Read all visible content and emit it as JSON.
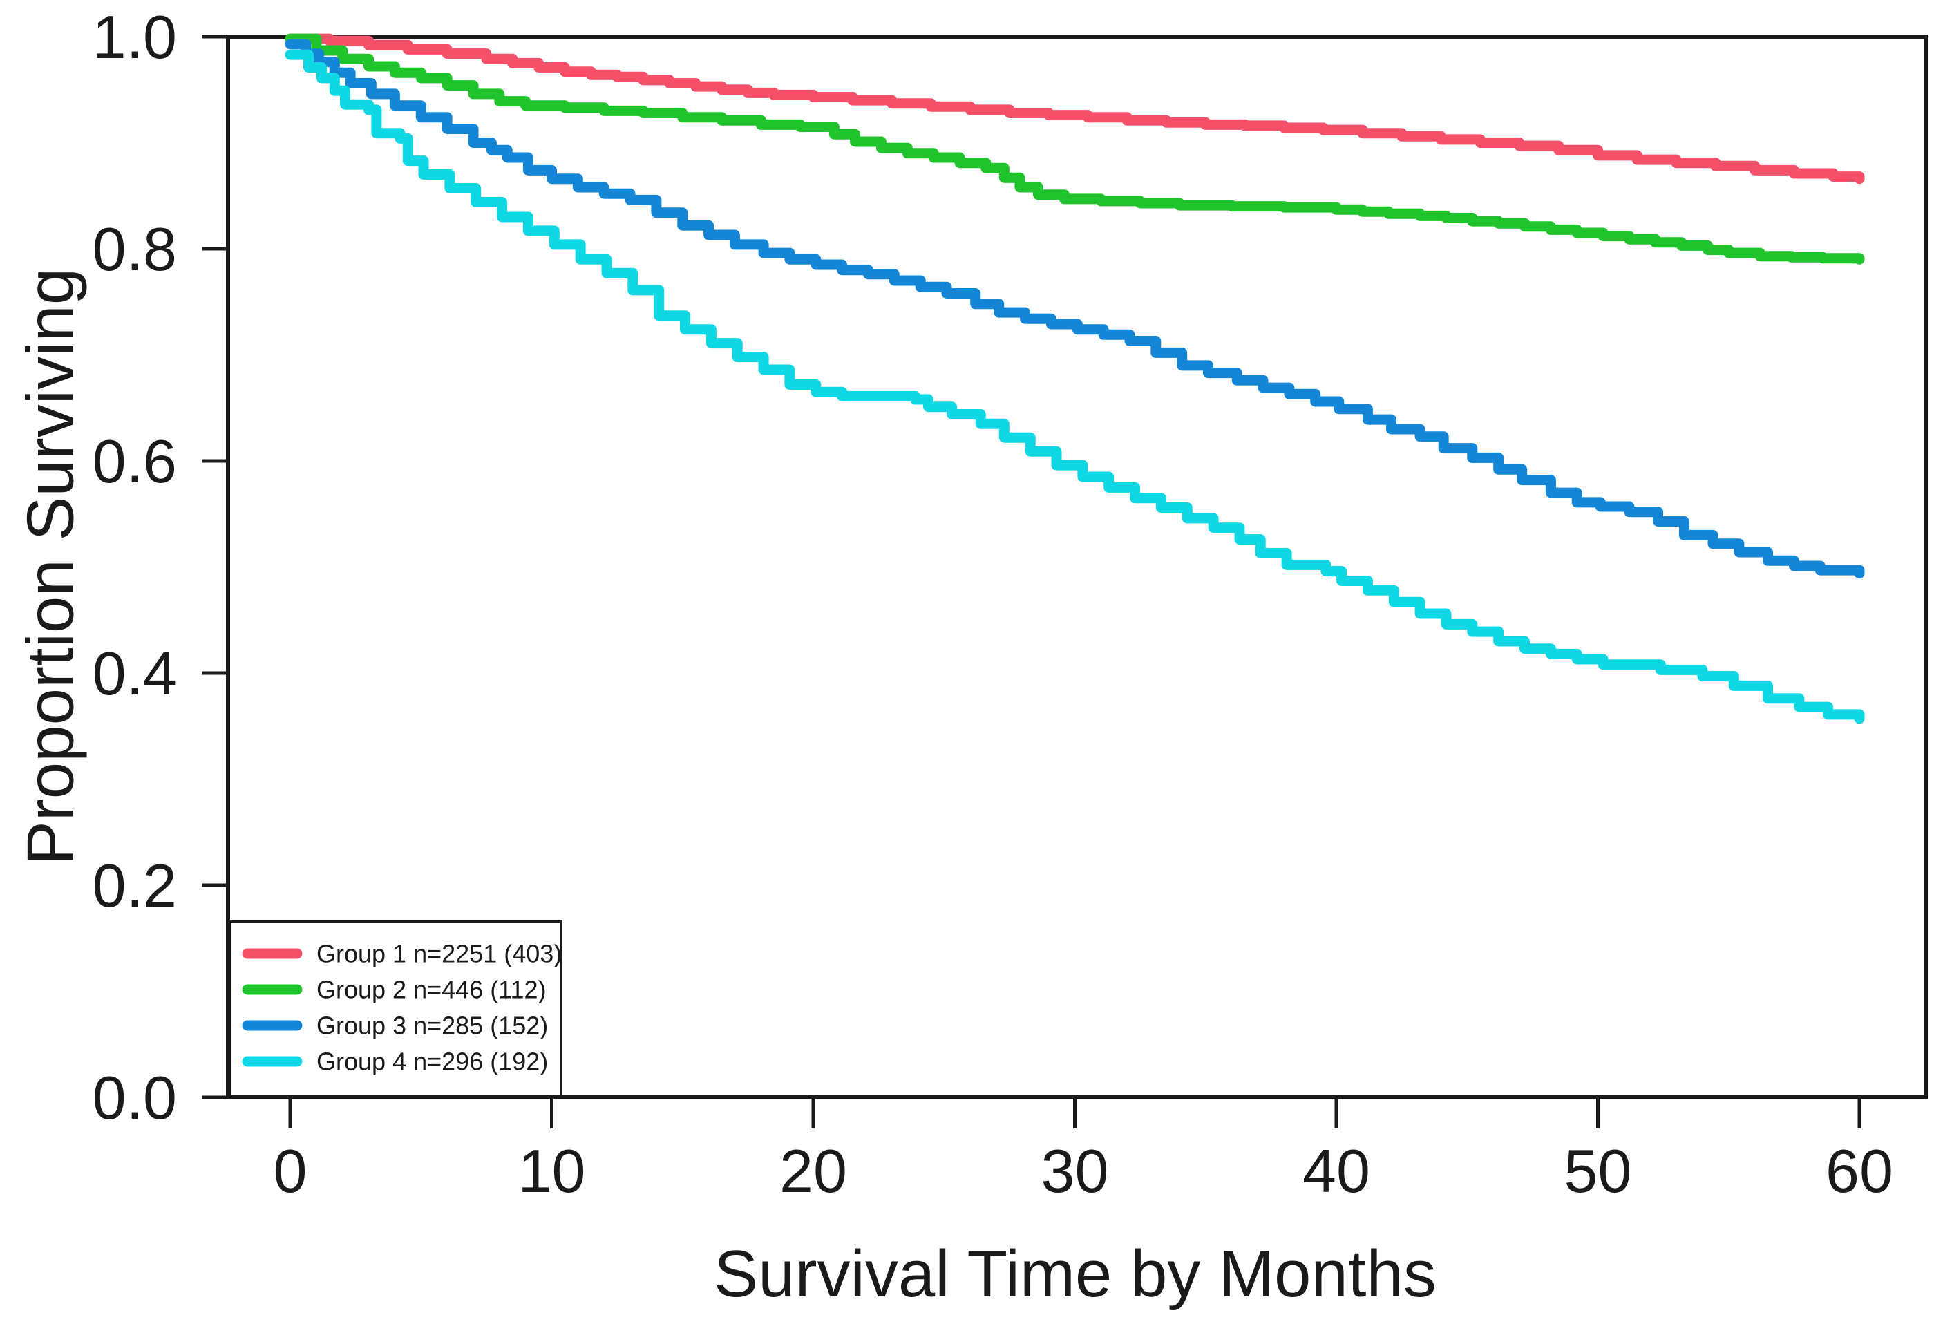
{
  "figure": {
    "background": "#ffffff",
    "axis_color": "#1a1a1a"
  },
  "chart_data": {
    "type": "line",
    "subtype": "kaplan-meier-step",
    "title": "",
    "xlabel": "Survival Time by Months",
    "ylabel": "Proportion Surviving",
    "xlim": [
      0,
      60
    ],
    "ylim": [
      0.0,
      1.0
    ],
    "grid": false,
    "legend_position": "bottom-left",
    "x_ticks": [
      0,
      10,
      20,
      30,
      40,
      50,
      60
    ],
    "x_tick_labels": [
      "0",
      "10",
      "20",
      "30",
      "40",
      "50",
      "60"
    ],
    "y_ticks": [
      0.0,
      0.2,
      0.4,
      0.6,
      0.8,
      1.0
    ],
    "y_tick_labels": [
      "0.0",
      "0.2",
      "0.4",
      "0.6",
      "0.8",
      "1.0"
    ],
    "series": [
      {
        "name": "Group 1 n=2251 (403)",
        "color": "#F4506A",
        "n": 2251,
        "events": 403,
        "points": [
          [
            0,
            0.998
          ],
          [
            1.5,
            0.996
          ],
          [
            3,
            0.992
          ],
          [
            4.5,
            0.988
          ],
          [
            6,
            0.984
          ],
          [
            7.5,
            0.979
          ],
          [
            8.5,
            0.975
          ],
          [
            9.5,
            0.971
          ],
          [
            10.5,
            0.967
          ],
          [
            11.5,
            0.964
          ],
          [
            12.5,
            0.962
          ],
          [
            13.5,
            0.959
          ],
          [
            14.5,
            0.956
          ],
          [
            15.5,
            0.953
          ],
          [
            16.5,
            0.95
          ],
          [
            17.5,
            0.947
          ],
          [
            18.5,
            0.945
          ],
          [
            20,
            0.943
          ],
          [
            21.5,
            0.94
          ],
          [
            23,
            0.937
          ],
          [
            24.5,
            0.934
          ],
          [
            26,
            0.931
          ],
          [
            27.5,
            0.928
          ],
          [
            29,
            0.926
          ],
          [
            30.5,
            0.924
          ],
          [
            32,
            0.921
          ],
          [
            33.5,
            0.919
          ],
          [
            35,
            0.917
          ],
          [
            36.5,
            0.916
          ],
          [
            38,
            0.914
          ],
          [
            39.5,
            0.912
          ],
          [
            41,
            0.909
          ],
          [
            42.5,
            0.906
          ],
          [
            44,
            0.903
          ],
          [
            45.5,
            0.9
          ],
          [
            47,
            0.897
          ],
          [
            48.5,
            0.893
          ],
          [
            50,
            0.888
          ],
          [
            51.5,
            0.884
          ],
          [
            53,
            0.881
          ],
          [
            54.5,
            0.878
          ],
          [
            56,
            0.874
          ],
          [
            57.5,
            0.871
          ],
          [
            59,
            0.868
          ],
          [
            60,
            0.866
          ]
        ]
      },
      {
        "name": "Group 2 n=446 (112)",
        "color": "#1FC42C",
        "n": 446,
        "events": 112,
        "points": [
          [
            0,
            0.998
          ],
          [
            1,
            0.987
          ],
          [
            2,
            0.979
          ],
          [
            3,
            0.972
          ],
          [
            4,
            0.966
          ],
          [
            5,
            0.961
          ],
          [
            6,
            0.954
          ],
          [
            7,
            0.946
          ],
          [
            8,
            0.939
          ],
          [
            9,
            0.935
          ],
          [
            10.5,
            0.933
          ],
          [
            12,
            0.93
          ],
          [
            13.5,
            0.928
          ],
          [
            15,
            0.924
          ],
          [
            16.5,
            0.921
          ],
          [
            18,
            0.917
          ],
          [
            19.5,
            0.915
          ],
          [
            20.8,
            0.908
          ],
          [
            21.6,
            0.901
          ],
          [
            22.6,
            0.895
          ],
          [
            23.6,
            0.89
          ],
          [
            24.6,
            0.886
          ],
          [
            25.6,
            0.881
          ],
          [
            26.6,
            0.876
          ],
          [
            27.3,
            0.867
          ],
          [
            27.9,
            0.858
          ],
          [
            28.6,
            0.851
          ],
          [
            29.6,
            0.847
          ],
          [
            31,
            0.845
          ],
          [
            32.5,
            0.843
          ],
          [
            34,
            0.841
          ],
          [
            36,
            0.84
          ],
          [
            38,
            0.839
          ],
          [
            40,
            0.837
          ],
          [
            41,
            0.835
          ],
          [
            42,
            0.833
          ],
          [
            43.2,
            0.831
          ],
          [
            44.2,
            0.829
          ],
          [
            45.2,
            0.826
          ],
          [
            46.2,
            0.824
          ],
          [
            47.2,
            0.821
          ],
          [
            48.2,
            0.818
          ],
          [
            49.2,
            0.815
          ],
          [
            50.2,
            0.812
          ],
          [
            51.2,
            0.809
          ],
          [
            52.2,
            0.806
          ],
          [
            53.2,
            0.803
          ],
          [
            54.2,
            0.799
          ],
          [
            55,
            0.796
          ],
          [
            56.2,
            0.793
          ],
          [
            57.4,
            0.792
          ],
          [
            58.6,
            0.791
          ],
          [
            60,
            0.79
          ]
        ]
      },
      {
        "name": "Group 3 n=285 (152)",
        "color": "#1585D6",
        "n": 285,
        "events": 152,
        "points": [
          [
            0,
            0.993
          ],
          [
            0.6,
            0.984
          ],
          [
            1.1,
            0.976
          ],
          [
            1.7,
            0.966
          ],
          [
            2.3,
            0.956
          ],
          [
            3.1,
            0.946
          ],
          [
            4,
            0.935
          ],
          [
            5,
            0.924
          ],
          [
            6,
            0.913
          ],
          [
            7,
            0.9
          ],
          [
            7.7,
            0.893
          ],
          [
            8.3,
            0.886
          ],
          [
            9.1,
            0.874
          ],
          [
            10,
            0.866
          ],
          [
            11,
            0.858
          ],
          [
            12,
            0.852
          ],
          [
            13,
            0.846
          ],
          [
            14,
            0.834
          ],
          [
            15,
            0.822
          ],
          [
            16,
            0.813
          ],
          [
            17,
            0.804
          ],
          [
            18.1,
            0.796
          ],
          [
            19.1,
            0.79
          ],
          [
            20.1,
            0.785
          ],
          [
            21.1,
            0.78
          ],
          [
            22.1,
            0.776
          ],
          [
            23.1,
            0.77
          ],
          [
            24.1,
            0.764
          ],
          [
            25.1,
            0.758
          ],
          [
            26.2,
            0.748
          ],
          [
            27.1,
            0.74
          ],
          [
            28.1,
            0.734
          ],
          [
            29.1,
            0.729
          ],
          [
            30.1,
            0.724
          ],
          [
            31.1,
            0.719
          ],
          [
            32.1,
            0.713
          ],
          [
            33.1,
            0.702
          ],
          [
            34.1,
            0.69
          ],
          [
            35.1,
            0.683
          ],
          [
            36.2,
            0.676
          ],
          [
            37.2,
            0.669
          ],
          [
            38.2,
            0.663
          ],
          [
            39.2,
            0.656
          ],
          [
            40.1,
            0.649
          ],
          [
            41.2,
            0.639
          ],
          [
            42.1,
            0.63
          ],
          [
            43.2,
            0.623
          ],
          [
            44.1,
            0.612
          ],
          [
            45.2,
            0.603
          ],
          [
            46.2,
            0.592
          ],
          [
            47.1,
            0.582
          ],
          [
            48.2,
            0.57
          ],
          [
            49.2,
            0.561
          ],
          [
            50.1,
            0.557
          ],
          [
            51.2,
            0.552
          ],
          [
            52.3,
            0.543
          ],
          [
            53.3,
            0.53
          ],
          [
            54.4,
            0.522
          ],
          [
            55.4,
            0.514
          ],
          [
            56.5,
            0.506
          ],
          [
            57.5,
            0.501
          ],
          [
            58.5,
            0.497
          ],
          [
            60,
            0.494
          ]
        ]
      },
      {
        "name": "Group 4 n=296 (192)",
        "color": "#10D7E4",
        "n": 296,
        "events": 192,
        "points": [
          [
            0,
            0.983
          ],
          [
            0.7,
            0.971
          ],
          [
            1.2,
            0.961
          ],
          [
            1.7,
            0.949
          ],
          [
            2.1,
            0.936
          ],
          [
            3,
            0.931
          ],
          [
            3.3,
            0.909
          ],
          [
            4.2,
            0.904
          ],
          [
            4.5,
            0.883
          ],
          [
            5.1,
            0.87
          ],
          [
            6.1,
            0.857
          ],
          [
            7.1,
            0.844
          ],
          [
            8.1,
            0.83
          ],
          [
            9.1,
            0.817
          ],
          [
            10.1,
            0.804
          ],
          [
            11.1,
            0.79
          ],
          [
            12.1,
            0.777
          ],
          [
            13.1,
            0.761
          ],
          [
            14.1,
            0.737
          ],
          [
            15.1,
            0.724
          ],
          [
            16.1,
            0.711
          ],
          [
            17.1,
            0.698
          ],
          [
            18.1,
            0.686
          ],
          [
            19.1,
            0.672
          ],
          [
            20.1,
            0.665
          ],
          [
            21.1,
            0.661
          ],
          [
            23.9,
            0.658
          ],
          [
            24.4,
            0.651
          ],
          [
            25.3,
            0.644
          ],
          [
            26.4,
            0.635
          ],
          [
            27.3,
            0.622
          ],
          [
            28.3,
            0.609
          ],
          [
            29.3,
            0.596
          ],
          [
            30.3,
            0.585
          ],
          [
            31.3,
            0.575
          ],
          [
            32.3,
            0.565
          ],
          [
            33.3,
            0.556
          ],
          [
            34.3,
            0.546
          ],
          [
            35.3,
            0.537
          ],
          [
            36.3,
            0.526
          ],
          [
            37.1,
            0.513
          ],
          [
            38.1,
            0.502
          ],
          [
            39.6,
            0.496
          ],
          [
            40.2,
            0.487
          ],
          [
            41.2,
            0.478
          ],
          [
            42.2,
            0.467
          ],
          [
            43.2,
            0.456
          ],
          [
            44.2,
            0.446
          ],
          [
            45.2,
            0.439
          ],
          [
            46.2,
            0.43
          ],
          [
            47.2,
            0.423
          ],
          [
            48.2,
            0.418
          ],
          [
            49.2,
            0.413
          ],
          [
            50.2,
            0.408
          ],
          [
            52.4,
            0.403
          ],
          [
            54,
            0.397
          ],
          [
            55.2,
            0.388
          ],
          [
            56.5,
            0.376
          ],
          [
            57.7,
            0.368
          ],
          [
            58.8,
            0.361
          ],
          [
            60,
            0.357
          ]
        ]
      }
    ]
  }
}
